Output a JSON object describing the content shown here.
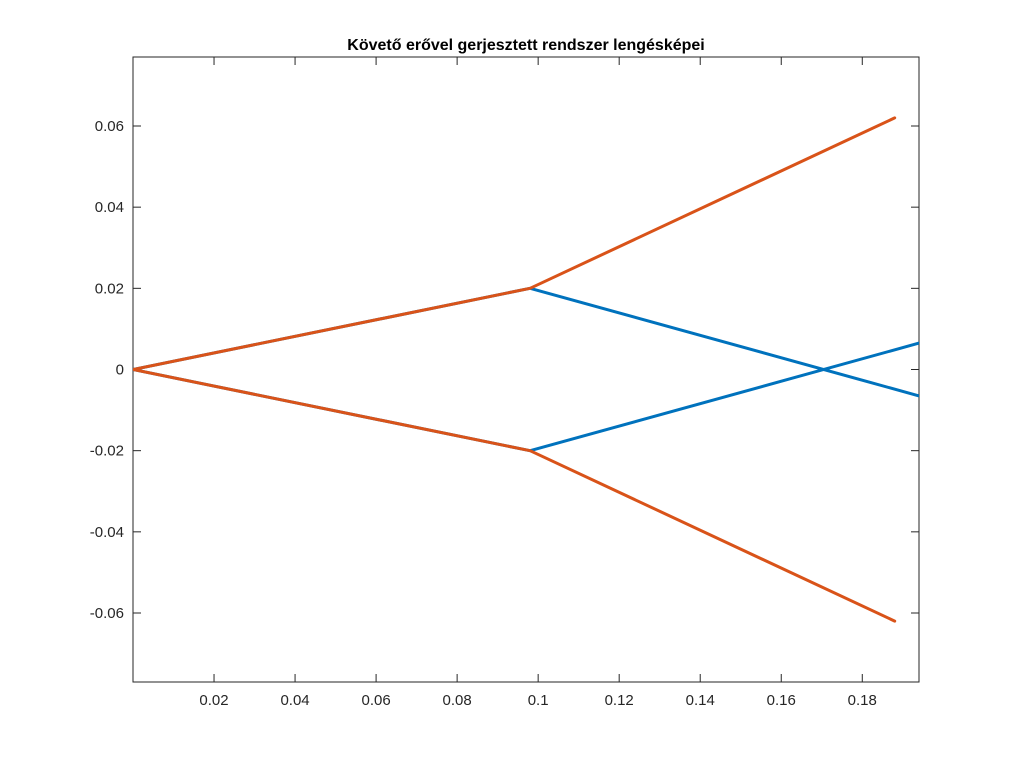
{
  "chart_data": {
    "type": "line",
    "title": "Követő erővel gerjesztett rendszer lengésképei",
    "xlabel": "",
    "ylabel": "",
    "xlim": [
      0,
      0.194
    ],
    "ylim": [
      -0.077,
      0.077
    ],
    "grid": false,
    "legend": "none",
    "x_ticks": [
      0.02,
      0.04,
      0.06,
      0.08,
      0.1,
      0.12,
      0.14,
      0.16,
      0.18
    ],
    "x_tick_labels": [
      "0.02",
      "0.04",
      "0.06",
      "0.08",
      "0.1",
      "0.12",
      "0.14",
      "0.16",
      "0.18"
    ],
    "y_ticks": [
      0.06,
      0.04,
      0.02,
      0,
      -0.02,
      -0.04,
      -0.06
    ],
    "y_tick_labels": [
      "0.06",
      "0.04",
      "0.02",
      "0",
      "-0.02",
      "-0.04",
      "-0.06"
    ],
    "series": [
      {
        "color": "#0072BD",
        "x": [
          0,
          0.098,
          0.194
        ],
        "y": [
          0,
          0.02,
          -0.0065
        ]
      },
      {
        "color": "#0072BD",
        "x": [
          0,
          0.098,
          0.194
        ],
        "y": [
          0,
          -0.02,
          0.0065
        ]
      },
      {
        "color": "#D95319",
        "x": [
          0,
          0.098,
          0.188
        ],
        "y": [
          0,
          0.02,
          0.062
        ]
      },
      {
        "color": "#D95319",
        "x": [
          0,
          0.098,
          0.188
        ],
        "y": [
          0,
          -0.02,
          -0.062
        ]
      }
    ]
  }
}
